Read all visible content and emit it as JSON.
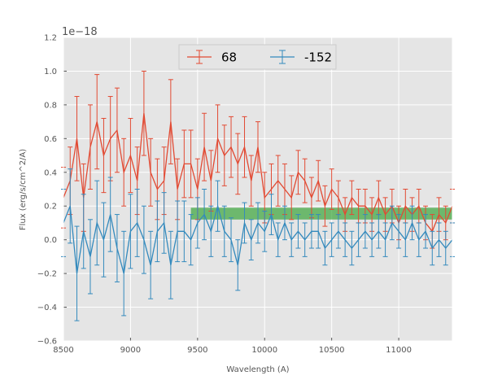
{
  "chart_data": {
    "type": "line",
    "xlabel": "Wavelength (A)",
    "ylabel": "Flux (erg/s/cm^2/A)",
    "y_offset_label": "1e−18",
    "xlim": [
      8500,
      11400
    ],
    "ylim": [
      -0.6,
      1.2
    ],
    "x_ticks": [
      8500,
      9000,
      9500,
      10000,
      10500,
      11000
    ],
    "y_ticks": [
      -0.6,
      -0.4,
      -0.2,
      0.0,
      0.2,
      0.4,
      0.6,
      0.8,
      1.0,
      1.2
    ],
    "x_tick_labels": [
      "8500",
      "9000",
      "9500",
      "10000",
      "10500",
      "11000"
    ],
    "y_tick_labels": [
      "−0.6",
      "−0.4",
      "−0.2",
      "0.0",
      "0.2",
      "0.4",
      "0.6",
      "0.8",
      "1.0",
      "1.2"
    ],
    "grid": true,
    "legend_position": "top-center",
    "colors": {
      "red": "#e24a33",
      "blue": "#348abd",
      "band": "#2ca02c",
      "background": "#e5e5e5"
    },
    "band": {
      "x": [
        9450,
        11400
      ],
      "y": [
        0.12,
        0.19
      ]
    },
    "series": [
      {
        "name": "68",
        "color": "#e24a33",
        "x": [
          8500,
          8550,
          8600,
          8650,
          8700,
          8750,
          8800,
          8850,
          8900,
          8950,
          9000,
          9050,
          9100,
          9150,
          9200,
          9250,
          9300,
          9350,
          9400,
          9450,
          9500,
          9550,
          9600,
          9650,
          9700,
          9750,
          9800,
          9850,
          9900,
          9950,
          10000,
          10050,
          10100,
          10150,
          10200,
          10250,
          10300,
          10350,
          10400,
          10450,
          10500,
          10550,
          10600,
          10650,
          10700,
          10750,
          10800,
          10850,
          10900,
          10950,
          11000,
          11050,
          11100,
          11150,
          11200,
          11250,
          11300,
          11350,
          11400
        ],
        "y": [
          0.25,
          0.35,
          0.6,
          0.25,
          0.55,
          0.7,
          0.5,
          0.6,
          0.65,
          0.4,
          0.5,
          0.35,
          0.75,
          0.4,
          0.3,
          0.35,
          0.7,
          0.3,
          0.45,
          0.45,
          0.3,
          0.55,
          0.35,
          0.6,
          0.5,
          0.55,
          0.45,
          0.55,
          0.35,
          0.55,
          0.25,
          0.3,
          0.35,
          0.3,
          0.25,
          0.4,
          0.35,
          0.25,
          0.35,
          0.2,
          0.3,
          0.25,
          0.15,
          0.25,
          0.2,
          0.2,
          0.15,
          0.25,
          0.15,
          0.2,
          0.1,
          0.2,
          0.15,
          0.2,
          0.1,
          0.05,
          0.15,
          0.1,
          0.2
        ],
        "err": [
          0.18,
          0.2,
          0.25,
          0.2,
          0.25,
          0.28,
          0.22,
          0.25,
          0.25,
          0.2,
          0.22,
          0.2,
          0.25,
          0.2,
          0.18,
          0.2,
          0.25,
          0.18,
          0.2,
          0.2,
          0.18,
          0.2,
          0.18,
          0.2,
          0.18,
          0.18,
          0.18,
          0.18,
          0.15,
          0.15,
          0.15,
          0.15,
          0.15,
          0.15,
          0.13,
          0.13,
          0.13,
          0.12,
          0.12,
          0.12,
          0.12,
          0.1,
          0.1,
          0.1,
          0.1,
          0.1,
          0.1,
          0.1,
          0.1,
          0.1,
          0.1,
          0.1,
          0.1,
          0.1,
          0.1,
          0.1,
          0.1,
          0.1,
          0.1
        ]
      },
      {
        "name": "-152",
        "color": "#348abd",
        "x": [
          8500,
          8550,
          8600,
          8650,
          8700,
          8750,
          8800,
          8850,
          8900,
          8950,
          9000,
          9050,
          9100,
          9150,
          9200,
          9250,
          9300,
          9350,
          9400,
          9450,
          9500,
          9550,
          9600,
          9650,
          9700,
          9750,
          9800,
          9850,
          9900,
          9950,
          10000,
          10050,
          10100,
          10150,
          10200,
          10250,
          10300,
          10350,
          10400,
          10450,
          10500,
          10550,
          10600,
          10650,
          10700,
          10750,
          10800,
          10850,
          10900,
          10950,
          11000,
          11050,
          11100,
          11150,
          11200,
          11250,
          11300,
          11350,
          11400
        ],
        "y": [
          0.1,
          0.2,
          -0.2,
          0.05,
          -0.1,
          0.1,
          0.0,
          0.15,
          -0.05,
          -0.2,
          0.05,
          0.1,
          0.0,
          -0.15,
          0.05,
          0.1,
          -0.15,
          0.05,
          0.05,
          0.0,
          0.1,
          0.15,
          0.05,
          0.2,
          0.05,
          0.0,
          -0.15,
          0.1,
          0.0,
          0.1,
          0.05,
          0.15,
          0.0,
          0.1,
          0.0,
          0.05,
          0.0,
          0.05,
          0.05,
          -0.05,
          0.0,
          0.05,
          0.0,
          -0.05,
          0.0,
          0.05,
          0.0,
          0.05,
          0.0,
          0.1,
          0.05,
          0.0,
          0.1,
          0.0,
          0.05,
          -0.05,
          0.0,
          -0.05,
          0.0
        ],
        "err": [
          0.2,
          0.22,
          0.28,
          0.22,
          0.22,
          0.25,
          0.22,
          0.22,
          0.2,
          0.25,
          0.22,
          0.2,
          0.2,
          0.2,
          0.18,
          0.18,
          0.2,
          0.18,
          0.18,
          0.15,
          0.15,
          0.15,
          0.15,
          0.15,
          0.15,
          0.13,
          0.15,
          0.12,
          0.12,
          0.12,
          0.12,
          0.12,
          0.1,
          0.1,
          0.1,
          0.1,
          0.1,
          0.1,
          0.1,
          0.1,
          0.1,
          0.1,
          0.1,
          0.1,
          0.1,
          0.1,
          0.1,
          0.1,
          0.1,
          0.1,
          0.1,
          0.1,
          0.1,
          0.1,
          0.1,
          0.1,
          0.1,
          0.1,
          0.1
        ]
      }
    ]
  }
}
